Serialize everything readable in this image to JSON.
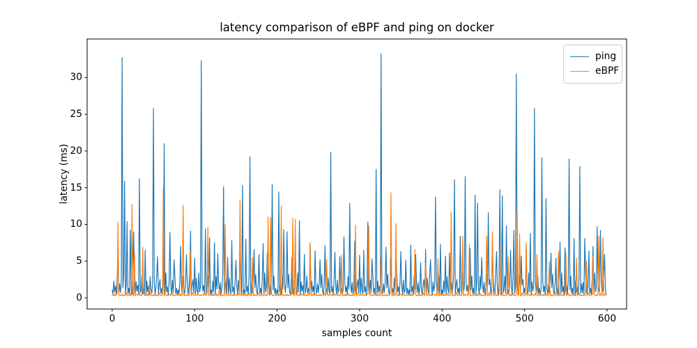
{
  "chart_data": {
    "type": "line",
    "title": "latency comparison of eBPF and ping on docker",
    "xlabel": "samples count",
    "ylabel": "latency (ms)",
    "x_start": 0,
    "x_step": 1,
    "n_samples": 600,
    "xlim": [
      -30.4,
      623.7
    ],
    "ylim": [
      -1.52,
      35.25
    ],
    "xticks": [
      0,
      100,
      200,
      300,
      400,
      500,
      600
    ],
    "yticks": [
      0,
      5,
      10,
      15,
      20,
      25,
      30
    ],
    "grid": false,
    "legend_position": "upper right",
    "background": "#ffffff",
    "spine_color": "#000000",
    "series": [
      {
        "name": "ping",
        "color": "#1f77b4",
        "values": [
          1.1,
          0.5,
          2.3,
          0.8,
          1.6,
          0.4,
          2.9,
          5.6,
          0.6,
          1.9,
          0.7,
          2.1,
          32.7,
          1.4,
          3.2,
          15.9,
          0.5,
          1.8,
          10.4,
          0.6,
          1.3,
          0.4,
          9.2,
          1.0,
          0.5,
          3.4,
          9.0,
          1.5,
          0.4,
          2.2,
          0.9,
          1.7,
          0.5,
          16.2,
          0.7,
          1.1,
          3.0,
          0.6,
          1.3,
          0.4,
          6.5,
          0.5,
          2.3,
          0.8,
          1.6,
          0.4,
          2.9,
          1.2,
          0.6,
          1.9,
          25.8,
          2.1,
          0.4,
          1.4,
          3.2,
          5.6,
          0.5,
          1.8,
          2.5,
          0.6,
          1.3,
          0.4,
          2.7,
          21.0,
          0.5,
          3.4,
          0.8,
          1.5,
          0.4,
          2.2,
          8.9,
          1.7,
          0.5,
          2.4,
          0.7,
          5.2,
          3.0,
          0.6,
          1.3,
          0.4,
          1.1,
          0.5,
          2.3,
          7.0,
          1.6,
          0.4,
          2.9,
          1.2,
          0.6,
          1.9,
          5.9,
          2.1,
          0.4,
          1.4,
          3.2,
          9.1,
          0.5,
          1.8,
          2.5,
          0.6,
          5.4,
          0.4,
          2.7,
          1.0,
          0.5,
          3.4,
          0.8,
          1.5,
          32.3,
          2.2,
          0.9,
          1.7,
          0.5,
          9.4,
          0.7,
          1.1,
          3.0,
          0.6,
          8.2,
          0.4,
          1.1,
          0.5,
          2.3,
          0.8,
          7.5,
          0.4,
          2.9,
          1.2,
          6.0,
          1.9,
          0.7,
          2.1,
          0.4,
          1.4,
          3.2,
          15.1,
          0.5,
          1.8,
          2.5,
          0.6,
          5.5,
          0.4,
          2.7,
          1.0,
          0.5,
          7.8,
          0.8,
          1.5,
          0.4,
          2.2,
          5.1,
          1.7,
          0.5,
          2.4,
          0.7,
          6.2,
          3.0,
          0.6,
          15.3,
          0.4,
          1.1,
          0.5,
          8.0,
          0.8,
          1.6,
          0.4,
          2.9,
          19.2,
          0.6,
          1.9,
          0.7,
          2.1,
          6.6,
          1.4,
          3.2,
          0.9,
          0.5,
          1.8,
          5.9,
          0.6,
          1.3,
          0.4,
          2.7,
          7.4,
          0.5,
          3.4,
          0.8,
          1.5,
          6.1,
          2.2,
          0.9,
          1.7,
          0.5,
          2.4,
          15.4,
          1.1,
          3.0,
          0.6,
          1.3,
          0.4,
          1.1,
          0.5,
          14.4,
          0.8,
          1.6,
          0.4,
          2.9,
          1.2,
          9.3,
          1.9,
          0.7,
          2.1,
          9.0,
          1.4,
          3.2,
          0.9,
          0.5,
          1.8,
          5.5,
          0.6,
          1.3,
          0.4,
          6.8,
          1.0,
          0.5,
          3.4,
          0.8,
          10.5,
          0.4,
          2.2,
          0.9,
          1.7,
          0.5,
          5.9,
          0.7,
          1.1,
          3.0,
          0.6,
          1.3,
          0.4,
          7.5,
          0.5,
          2.3,
          0.8,
          1.6,
          0.4,
          6.4,
          1.2,
          0.6,
          1.9,
          0.7,
          2.1,
          5.2,
          1.4,
          3.2,
          0.9,
          0.5,
          1.8,
          7.1,
          0.6,
          1.3,
          0.4,
          2.7,
          1.0,
          0.5,
          19.8,
          0.8,
          1.5,
          0.4,
          2.2,
          6.2,
          1.7,
          0.5,
          2.4,
          0.7,
          1.1,
          5.6,
          0.6,
          1.3,
          0.4,
          1.1,
          8.3,
          2.3,
          0.8,
          1.6,
          0.4,
          2.9,
          1.2,
          12.9,
          1.9,
          0.7,
          2.1,
          0.4,
          1.4,
          7.7,
          0.9,
          0.5,
          1.8,
          2.5,
          0.6,
          5.8,
          0.4,
          2.7,
          1.0,
          0.5,
          6.5,
          0.8,
          1.5,
          0.4,
          2.2,
          10.3,
          1.7,
          0.5,
          2.4,
          0.7,
          5.3,
          3.0,
          0.6,
          1.3,
          0.4,
          17.5,
          0.5,
          2.3,
          0.8,
          1.6,
          0.4,
          33.2,
          1.2,
          0.6,
          1.9,
          0.7,
          2.1,
          6.9,
          1.4,
          3.2,
          0.9,
          0.5,
          1.8,
          5.4,
          0.6,
          1.3,
          0.4,
          2.7,
          1.0,
          5.8,
          3.4,
          0.8,
          1.5,
          0.4,
          2.2,
          6.3,
          1.7,
          0.5,
          2.4,
          0.7,
          1.1,
          5.1,
          0.6,
          1.3,
          0.4,
          1.1,
          0.5,
          7.2,
          0.8,
          1.6,
          0.4,
          2.9,
          1.2,
          5.9,
          1.9,
          0.7,
          2.1,
          0.4,
          1.4,
          4.8,
          0.9,
          0.5,
          1.8,
          2.5,
          0.6,
          6.6,
          0.4,
          2.7,
          1.0,
          0.5,
          3.4,
          5.2,
          1.5,
          0.4,
          2.2,
          0.9,
          1.7,
          13.7,
          2.4,
          0.7,
          1.1,
          3.0,
          0.6,
          7.3,
          0.4,
          1.1,
          0.5,
          2.3,
          0.8,
          5.7,
          0.4,
          2.9,
          1.2,
          0.6,
          6.1,
          0.7,
          2.1,
          0.4,
          1.4,
          3.2,
          16.1,
          0.5,
          1.8,
          2.5,
          0.6,
          1.3,
          0.4,
          8.4,
          1.0,
          0.5,
          3.4,
          0.8,
          1.5,
          16.5,
          2.2,
          0.9,
          1.7,
          0.5,
          2.4,
          6.7,
          1.1,
          3.0,
          0.6,
          1.3,
          0.4,
          14.0,
          0.5,
          2.3,
          12.9,
          1.6,
          0.4,
          2.9,
          1.2,
          5.5,
          1.9,
          0.7,
          2.1,
          0.4,
          1.4,
          3.2,
          0.9,
          11.6,
          1.8,
          2.5,
          0.6,
          1.3,
          7.9,
          2.7,
          1.0,
          0.5,
          3.4,
          6.3,
          1.5,
          0.4,
          2.2,
          14.7,
          1.7,
          0.5,
          13.9,
          0.7,
          1.1,
          3.0,
          0.6,
          9.8,
          0.4,
          1.1,
          0.5,
          2.3,
          6.5,
          1.6,
          0.4,
          2.9,
          9.2,
          0.6,
          1.9,
          30.5,
          2.1,
          0.4,
          1.4,
          3.2,
          0.9,
          5.7,
          1.8,
          2.5,
          0.6,
          1.3,
          0.4,
          6.9,
          1.0,
          0.5,
          3.4,
          0.8,
          8.8,
          0.4,
          2.2,
          0.9,
          1.7,
          25.8,
          2.4,
          0.7,
          1.1,
          3.0,
          0.6,
          1.3,
          0.4,
          1.1,
          19.1,
          2.3,
          0.8,
          1.6,
          0.4,
          13.5,
          1.2,
          0.6,
          1.9,
          0.7,
          2.1,
          6.1,
          1.4,
          3.2,
          0.9,
          0.5,
          1.8,
          5.4,
          0.6,
          1.3,
          0.4,
          2.7,
          7.6,
          0.5,
          3.4,
          0.8,
          1.5,
          0.4,
          6.8,
          0.9,
          1.7,
          0.5,
          2.4,
          18.9,
          1.1,
          3.0,
          0.6,
          1.3,
          0.4,
          8.1,
          0.5,
          2.3,
          0.8,
          1.6,
          0.4,
          2.9,
          17.9,
          0.6,
          1.9,
          0.7,
          2.1,
          0.4,
          8.1,
          3.2,
          0.9,
          0.5,
          1.8,
          6.4,
          0.6,
          1.3,
          0.4,
          2.7,
          7.0,
          0.5,
          3.4,
          0.8,
          1.5,
          9.7,
          2.2,
          0.9,
          1.7,
          9.2,
          2.4,
          0.7,
          1.1,
          3.0,
          5.9,
          1.3,
          0.4
        ]
      },
      {
        "name": "eBPF",
        "color": "#ff7f0e",
        "values": [
          0.3,
          0.4,
          0.3,
          0.5,
          0.3,
          0.4,
          0.6,
          10.3,
          0.4,
          0.3,
          0.4,
          0.3,
          0.5,
          0.3,
          0.4,
          0.3,
          0.3,
          0.7,
          0.4,
          0.3,
          0.3,
          0.5,
          0.4,
          0.3,
          12.7,
          0.4,
          0.3,
          6.2,
          0.3,
          0.5,
          0.5,
          0.3,
          0.4,
          0.6,
          0.3,
          0.4,
          0.3,
          6.9,
          0.5,
          0.4,
          0.3,
          0.4,
          0.3,
          0.5,
          0.3,
          1.8,
          0.6,
          0.3,
          0.4,
          0.3,
          0.4,
          0.3,
          0.5,
          0.3,
          0.4,
          0.3,
          0.3,
          0.7,
          0.4,
          0.3,
          0.3,
          0.5,
          15.0,
          0.3,
          0.6,
          0.4,
          0.3,
          0.4,
          0.3,
          0.5,
          0.5,
          0.3,
          0.4,
          0.6,
          0.3,
          0.4,
          0.3,
          0.3,
          0.5,
          0.4,
          0.3,
          0.4,
          0.3,
          0.5,
          0.3,
          0.4,
          12.6,
          0.3,
          0.4,
          0.3,
          0.4,
          0.3,
          0.5,
          0.3,
          0.4,
          6.4,
          0.3,
          0.7,
          0.4,
          0.3,
          0.3,
          0.5,
          0.4,
          0.3,
          0.6,
          0.4,
          0.3,
          0.4,
          0.3,
          0.5,
          0.5,
          0.3,
          0.4,
          0.6,
          0.3,
          0.4,
          9.6,
          0.3,
          0.5,
          0.4,
          0.3,
          0.4,
          0.3,
          0.5,
          0.3,
          0.4,
          0.6,
          0.3,
          0.4,
          0.3,
          1.2,
          0.3,
          0.5,
          0.3,
          0.4,
          0.3,
          0.3,
          10.0,
          0.4,
          0.3,
          0.3,
          0.5,
          0.4,
          0.3,
          0.6,
          0.4,
          0.3,
          0.4,
          0.3,
          0.5,
          0.5,
          0.3,
          0.4,
          0.6,
          0.3,
          13.3,
          0.3,
          0.3,
          0.5,
          0.4,
          0.3,
          0.4,
          0.3,
          0.5,
          0.3,
          0.4,
          0.6,
          0.3,
          0.4,
          0.3,
          5.5,
          0.3,
          0.5,
          0.3,
          0.4,
          0.3,
          0.3,
          0.7,
          0.4,
          0.3,
          0.3,
          0.5,
          0.4,
          0.3,
          0.6,
          0.4,
          0.3,
          0.4,
          0.3,
          11.0,
          0.5,
          0.3,
          10.9,
          0.6,
          0.3,
          0.4,
          0.3,
          0.3,
          0.5,
          0.4,
          0.3,
          0.4,
          0.3,
          0.5,
          0.3,
          12.5,
          0.6,
          0.3,
          0.4,
          0.3,
          0.4,
          0.3,
          0.5,
          0.3,
          0.4,
          0.3,
          0.3,
          0.7,
          0.4,
          10.9,
          0.3,
          0.5,
          10.7,
          0.3,
          0.6,
          0.4,
          0.3,
          0.4,
          0.3,
          0.5,
          0.5,
          0.3,
          0.4,
          0.6,
          0.3,
          0.4,
          0.3,
          0.3,
          0.5,
          0.4,
          7.4,
          0.4,
          0.3,
          0.5,
          0.3,
          0.4,
          0.6,
          0.3,
          0.4,
          0.3,
          0.4,
          0.3,
          0.5,
          0.3,
          0.4,
          0.3,
          0.3,
          0.7,
          0.4,
          0.3,
          5.2,
          0.5,
          0.4,
          0.3,
          0.6,
          0.4,
          0.3,
          0.4,
          0.3,
          0.5,
          0.5,
          0.3,
          0.4,
          0.6,
          0.3,
          0.4,
          0.3,
          0.3,
          5.8,
          0.4,
          0.3,
          0.4,
          0.3,
          0.5,
          0.3,
          0.4,
          0.6,
          0.3,
          0.4,
          0.3,
          0.4,
          0.3,
          0.5,
          0.3,
          0.4,
          9.9,
          0.3,
          0.7,
          0.4,
          0.3,
          0.3,
          0.5,
          0.4,
          0.3,
          0.6,
          0.4,
          0.3,
          0.4,
          0.3,
          0.5,
          0.5,
          9.8,
          0.4,
          0.6,
          0.3,
          0.4,
          0.3,
          0.3,
          0.5,
          0.4,
          0.3,
          0.4,
          0.3,
          0.5,
          0.3,
          0.4,
          5.5,
          0.3,
          0.4,
          0.3,
          0.4,
          0.3,
          0.5,
          0.3,
          0.4,
          0.3,
          0.3,
          0.7,
          14.3,
          0.3,
          0.3,
          0.5,
          0.4,
          0.3,
          10.1,
          0.4,
          0.3,
          0.4,
          0.3,
          0.5,
          0.5,
          0.3,
          0.4,
          0.6,
          0.3,
          0.4,
          0.3,
          0.3,
          0.5,
          0.4,
          0.3,
          0.4,
          0.3,
          0.5,
          0.3,
          0.4,
          0.6,
          6.6,
          0.4,
          0.3,
          0.4,
          0.3,
          0.5,
          0.3,
          0.4,
          0.3,
          0.3,
          0.7,
          0.4,
          0.3,
          4.8,
          0.5,
          0.4,
          0.3,
          0.6,
          0.4,
          0.3,
          0.4,
          0.3,
          0.5,
          0.5,
          0.3,
          0.4,
          0.6,
          0.3,
          5.3,
          0.3,
          0.3,
          0.5,
          0.4,
          0.3,
          0.4,
          0.3,
          0.5,
          0.3,
          0.4,
          0.6,
          0.3,
          0.4,
          0.3,
          0.4,
          11.7,
          0.5,
          0.3,
          0.4,
          0.3,
          0.3,
          0.7,
          0.4,
          0.3,
          0.3,
          0.5,
          0.4,
          0.3,
          0.6,
          8.4,
          0.3,
          0.4,
          0.3,
          0.5,
          0.5,
          0.3,
          0.4,
          7.3,
          0.3,
          0.4,
          0.3,
          0.3,
          0.5,
          0.4,
          0.3,
          0.4,
          0.3,
          0.5,
          0.3,
          0.4,
          0.6,
          0.3,
          0.4,
          0.3,
          0.4,
          0.3,
          0.5,
          0.3,
          8.4,
          0.3,
          0.3,
          0.7,
          0.4,
          0.3,
          0.3,
          9.0,
          0.4,
          0.3,
          0.6,
          0.4,
          0.3,
          0.4,
          0.3,
          0.5,
          6.9,
          0.3,
          0.4,
          0.6,
          0.3,
          0.4,
          0.3,
          0.3,
          0.5,
          0.4,
          5.6,
          0.4,
          0.3,
          0.5,
          0.3,
          0.4,
          0.6,
          0.3,
          0.4,
          0.3,
          0.4,
          11.9,
          0.5,
          0.3,
          8.7,
          0.3,
          0.3,
          0.7,
          0.4,
          0.3,
          0.3,
          0.5,
          7.5,
          0.3,
          0.6,
          0.4,
          0.3,
          0.4,
          0.3,
          0.5,
          0.5,
          0.3,
          0.4,
          0.6,
          0.3,
          5.9,
          0.3,
          0.3,
          0.5,
          0.4,
          0.3,
          0.4,
          0.3,
          0.5,
          0.3,
          0.4,
          0.6,
          0.3,
          0.4,
          0.3,
          4.9,
          0.3,
          0.5,
          0.3,
          0.4,
          0.3,
          0.3,
          0.7,
          0.4,
          0.3,
          0.3,
          6.3,
          0.4,
          0.3,
          0.6,
          0.4,
          0.3,
          0.4,
          0.3,
          0.5,
          6.2,
          0.3,
          0.4,
          0.6,
          0.3,
          0.4,
          0.3,
          0.3,
          0.5,
          0.4,
          0.3,
          0.4,
          0.3,
          5.4,
          0.3,
          0.4,
          0.6,
          0.3,
          0.4,
          0.3,
          0.4,
          0.3,
          0.5,
          0.3,
          0.4,
          5.0,
          0.3,
          0.7,
          0.4,
          0.3,
          0.3,
          0.5,
          0.4,
          5.7,
          0.6,
          0.4,
          0.3,
          0.4,
          0.3,
          0.5,
          8.4,
          0.3,
          0.4,
          0.6,
          0.3,
          8.2,
          0.3,
          0.3,
          0.5,
          0.4
        ]
      }
    ]
  }
}
